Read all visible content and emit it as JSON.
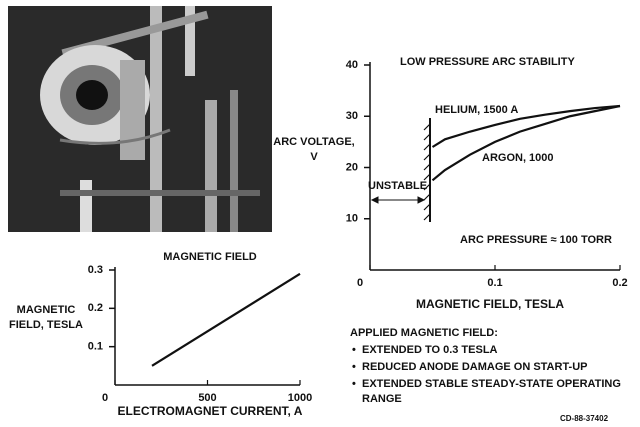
{
  "chart_data": [
    {
      "type": "line",
      "title": "LOW PRESSURE ARC STABILITY",
      "y_label": "ARC VOLTAGE, V",
      "x_label": "MAGNETIC FIELD, TESLA",
      "x": [
        0.05,
        0.06,
        0.08,
        0.1,
        0.12,
        0.14,
        0.16,
        0.18,
        0.2
      ],
      "series": [
        {
          "name": "HELIUM, 1500 A",
          "color": "#111111",
          "values": [
            24,
            25.5,
            27,
            28.3,
            29.5,
            30.3,
            31,
            31.6,
            32
          ]
        },
        {
          "name": "ARGON, 1000",
          "color": "#111111",
          "values": [
            17.5,
            19.5,
            22.5,
            25,
            27,
            28.5,
            30,
            31,
            32
          ]
        }
      ],
      "annotations": [
        "UNSTABLE",
        "ARC PRESSURE ≈ 100 TORR"
      ],
      "xlim": [
        0,
        0.2
      ],
      "ylim": [
        0,
        40
      ],
      "xticks": [
        0,
        0.1,
        0.2
      ],
      "yticks": [
        10,
        20,
        30,
        40
      ]
    },
    {
      "type": "line",
      "title": "MAGNETIC FIELD",
      "y_label": "MAGNETIC FIELD, TESLA",
      "x_label": "ELECTROMAGNET CURRENT, A",
      "x": [
        200,
        1000
      ],
      "series": [
        {
          "name": null,
          "color": "#111111",
          "values": [
            0.05,
            0.29
          ]
        }
      ],
      "xlim": [
        0,
        1000
      ],
      "ylim": [
        0,
        0.3
      ],
      "xticks": [
        0,
        500,
        1000
      ],
      "yticks": [
        0.1,
        0.2,
        0.3
      ]
    }
  ],
  "notes": {
    "heading": "APPLIED MAGNETIC FIELD:",
    "bullets": [
      "EXTENDED TO 0.3 TESLA",
      "REDUCED ANODE DAMAGE ON START-UP",
      "EXTENDED STABLE STEADY-STATE OPERATING RANGE"
    ],
    "code": "CD-88-37402"
  }
}
